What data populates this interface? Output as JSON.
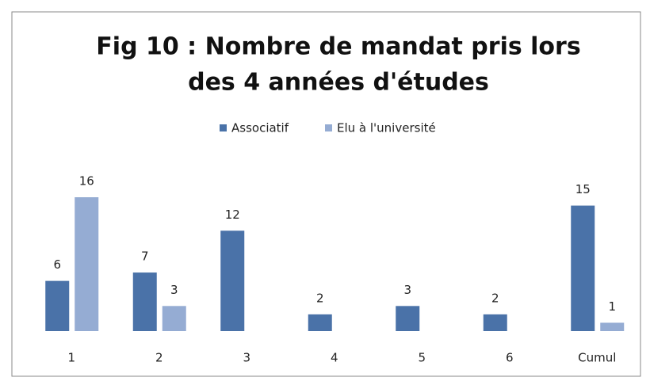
{
  "chart_data": {
    "type": "bar",
    "title": [
      "Fig 10 : Nombre de mandat pris lors",
      "des 4 années d'études"
    ],
    "categories": [
      "1",
      "2",
      "3",
      "4",
      "5",
      "6",
      "Cumul"
    ],
    "series": [
      {
        "name": "Associatif",
        "color": "#4a72a8",
        "values": [
          6,
          7,
          12,
          2,
          3,
          2,
          15
        ]
      },
      {
        "name": "Elu à l'université",
        "color": "#95acd3",
        "values": [
          16,
          3,
          null,
          null,
          null,
          null,
          1
        ]
      }
    ],
    "legend": "top"
  }
}
